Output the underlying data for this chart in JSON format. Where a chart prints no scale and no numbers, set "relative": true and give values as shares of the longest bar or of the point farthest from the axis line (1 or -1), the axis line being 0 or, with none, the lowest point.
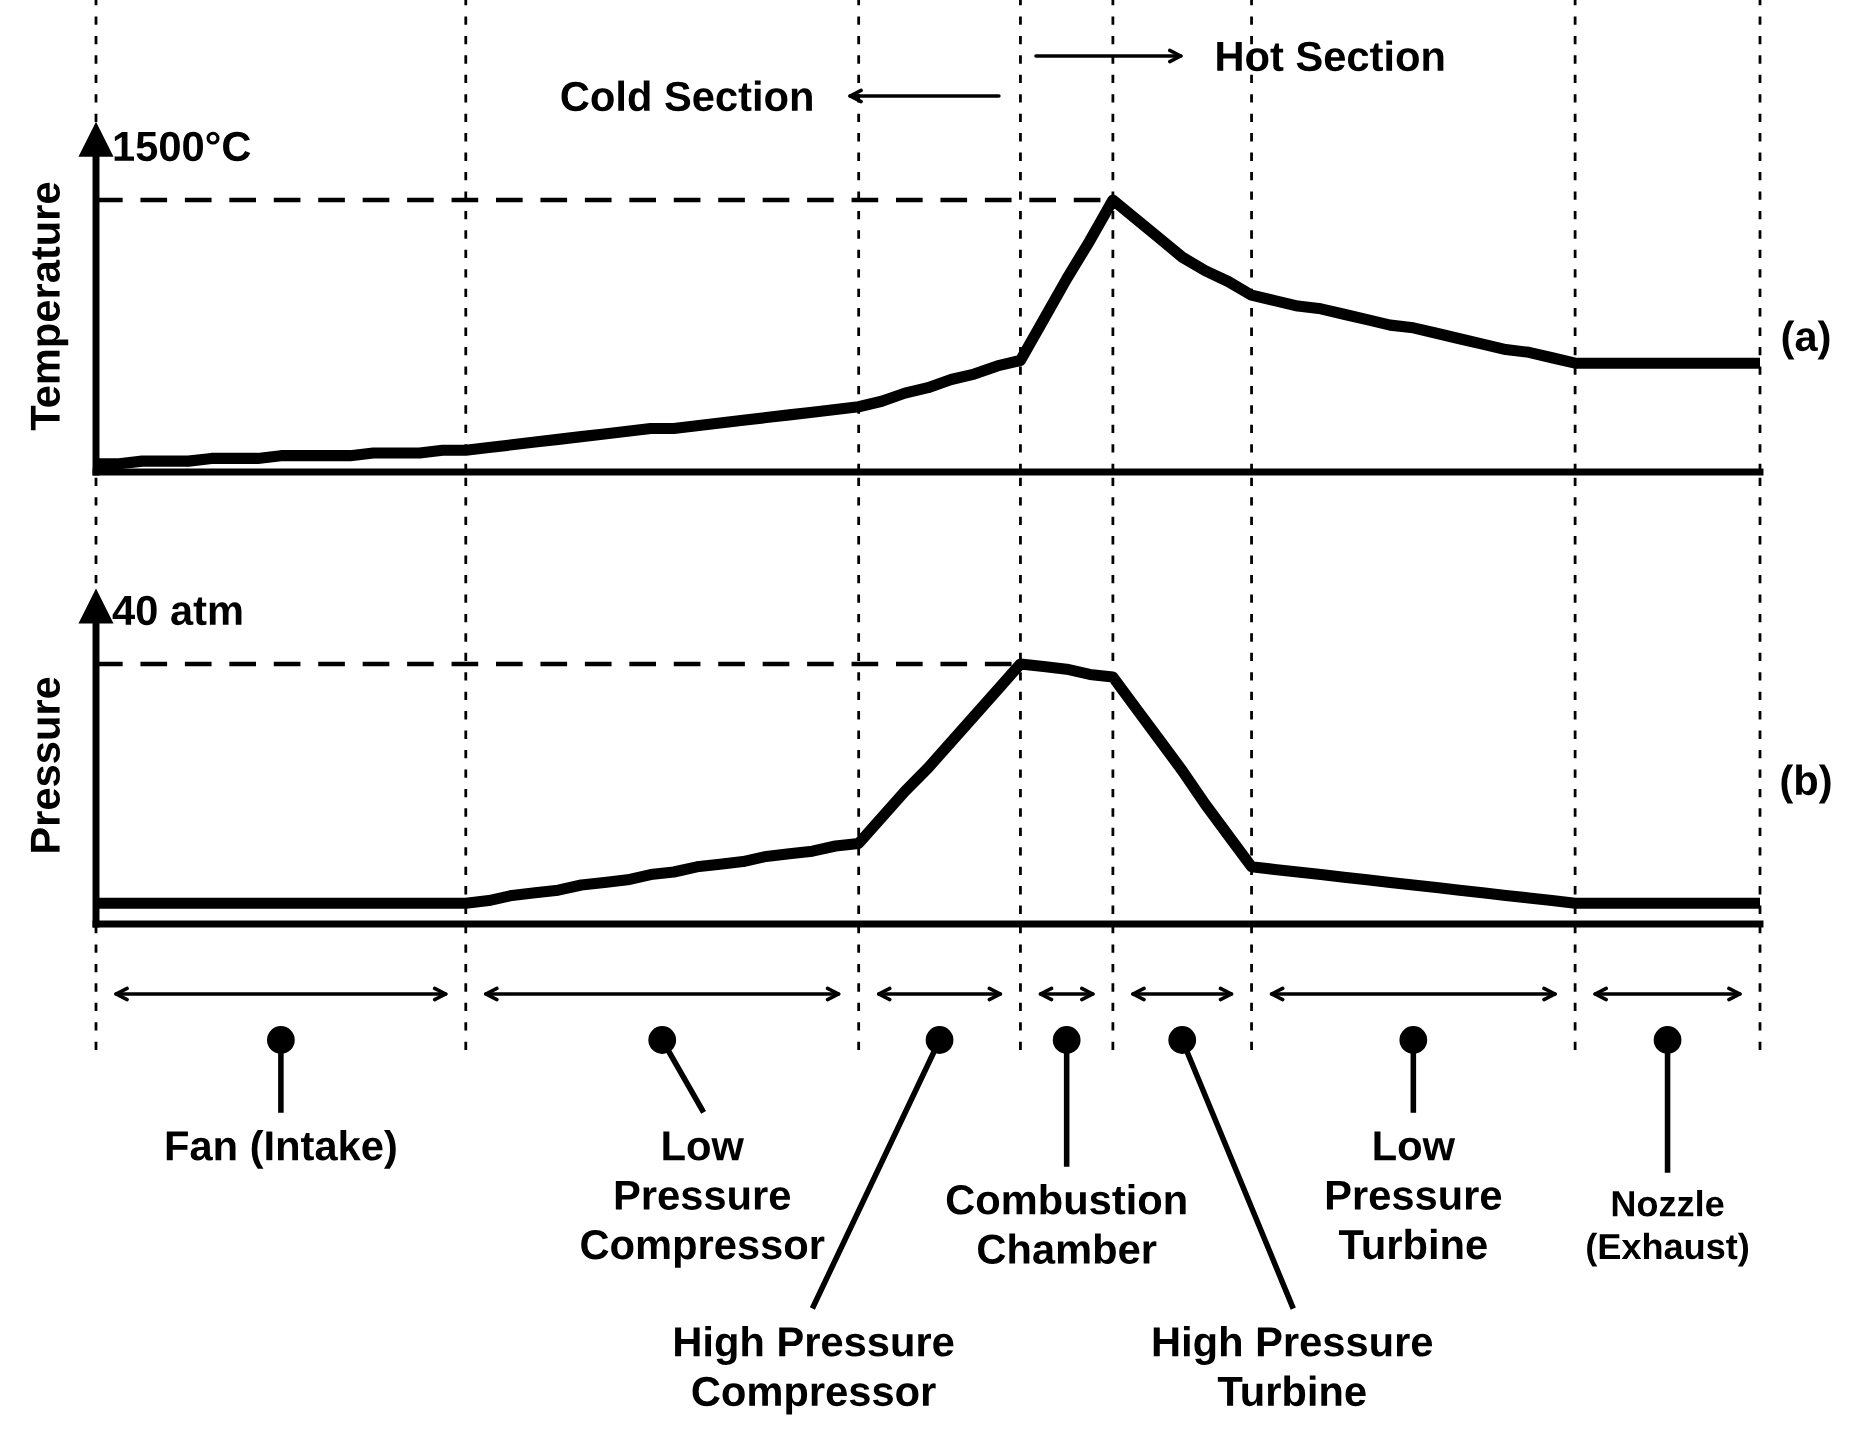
{
  "chart_data": [
    {
      "type": "line",
      "ylabel": "Temperature",
      "relative": true,
      "tick_labels": false,
      "categories": [
        null,
        null,
        null,
        null,
        null,
        null,
        null,
        null,
        null,
        null,
        null,
        null,
        null,
        null,
        null,
        null,
        null,
        null,
        null,
        null,
        null,
        null,
        null,
        null,
        null,
        null,
        null,
        null,
        null,
        null,
        null,
        null,
        null,
        null,
        null,
        null,
        null,
        null,
        null,
        null,
        null,
        null,
        null,
        null,
        null,
        null,
        null,
        null,
        null,
        null,
        null,
        null,
        null,
        null,
        null,
        null,
        null,
        null,
        null,
        null,
        null,
        null,
        null,
        null,
        null,
        null,
        null,
        null,
        null,
        null,
        null,
        null,
        null
      ],
      "series": [
        {
          "color": "#000000",
          "values": [
            0.03,
            0.03,
            0.04,
            0.04,
            0.04,
            0.05,
            0.05,
            0.05,
            0.06,
            0.06,
            0.06,
            0.06,
            0.07,
            0.07,
            0.07,
            0.08,
            0.08,
            0.09,
            0.1,
            0.11,
            0.12,
            0.13,
            0.14,
            0.15,
            0.16,
            0.16,
            0.17,
            0.18,
            0.19,
            0.2,
            0.21,
            0.22,
            0.23,
            0.24,
            0.26,
            0.29,
            0.31,
            0.34,
            0.36,
            0.39,
            0.41,
            0.56,
            0.71,
            0.85,
            1,
            0.93,
            0.86,
            0.79,
            0.74,
            0.7,
            0.65,
            0.63,
            0.61,
            0.6,
            0.58,
            0.56,
            0.54,
            0.53,
            0.51,
            0.49,
            0.47,
            0.45,
            0.44,
            0.42,
            0.4,
            0.4,
            0.4,
            0.4,
            0.4,
            0.4,
            0.4,
            0.4,
            0.4
          ]
        }
      ],
      "grid": "x",
      "ref_lines": [
        {
          "axis": "y",
          "value": 1,
          "label": "1500°C",
          "line_style": "dashed"
        }
      ],
      "annotations": [
        "Cold Section",
        "Hot Section",
        "(a)"
      ]
    },
    {
      "type": "line",
      "ylabel": "Pressure",
      "relative": true,
      "tick_labels": false,
      "categories": [
        null,
        null,
        null,
        null,
        null,
        null,
        null,
        null,
        null,
        null,
        null,
        null,
        null,
        null,
        null,
        null,
        null,
        null,
        null,
        null,
        null,
        null,
        null,
        null,
        null,
        null,
        null,
        null,
        null,
        null,
        null,
        null,
        null,
        null,
        null,
        null,
        null,
        null,
        null,
        null,
        null,
        null,
        null,
        null,
        null,
        null,
        null,
        null,
        null,
        null,
        null,
        null,
        null,
        null,
        null,
        null,
        null,
        null,
        null,
        null,
        null,
        null,
        null,
        null,
        null,
        null,
        null,
        null,
        null,
        null,
        null,
        null,
        null
      ],
      "series": [
        {
          "color": "#000000",
          "values": [
            0.08,
            0.08,
            0.08,
            0.08,
            0.08,
            0.08,
            0.08,
            0.08,
            0.08,
            0.08,
            0.08,
            0.08,
            0.08,
            0.08,
            0.08,
            0.08,
            0.08,
            0.09,
            0.11,
            0.12,
            0.13,
            0.15,
            0.16,
            0.17,
            0.19,
            0.2,
            0.22,
            0.23,
            0.24,
            0.26,
            0.27,
            0.28,
            0.3,
            0.31,
            0.41,
            0.51,
            0.6,
            0.7,
            0.8,
            0.9,
            1,
            0.99,
            0.98,
            0.96,
            0.95,
            0.83,
            0.71,
            0.59,
            0.46,
            0.34,
            0.22,
            0.21,
            0.2,
            0.19,
            0.18,
            0.17,
            0.16,
            0.15,
            0.14,
            0.13,
            0.12,
            0.11,
            0.1,
            0.09,
            0.08,
            0.08,
            0.08,
            0.08,
            0.08,
            0.08,
            0.08,
            0.08,
            0.08
          ]
        }
      ],
      "grid": "x",
      "ref_lines": [
        {
          "axis": "y",
          "value": 1,
          "label": "40 atm",
          "line_style": "dashed"
        }
      ],
      "annotations": [
        "Fan (Intake)",
        "Low\nPressure\nCompressor",
        "High Pressure\nCompressor",
        "Combustion\nChamber",
        "High Pressure\nTurbine",
        "Low\nPressure\nTurbine",
        "Nozzle\n(Exhaust)",
        "(b)"
      ]
    }
  ]
}
